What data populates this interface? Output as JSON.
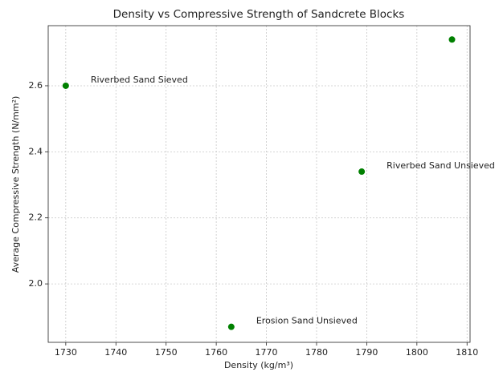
{
  "chart_data": {
    "type": "scatter",
    "title": "Density vs Compressive Strength of Sandcrete Blocks",
    "xlabel": "Density (kg/m³)",
    "ylabel": "Average Compressive Strength (N/mm²)",
    "x": [
      1730,
      1763,
      1789,
      1807
    ],
    "values": [
      2.6,
      1.87,
      2.34,
      2.74
    ],
    "point_labels": [
      "Riverbed Sand Sieved",
      "Erosion Sand Unsieved",
      "Riverbed Sand Unsieved",
      null
    ],
    "color": "#008000",
    "xlim": [
      1726.5,
      1810.6
    ],
    "xticks": [
      1730,
      1740,
      1750,
      1760,
      1770,
      1780,
      1790,
      1800,
      1810
    ],
    "ylim": [
      1.823,
      2.782
    ],
    "yticks": [
      {
        "value": 2.0,
        "label": "2.0"
      },
      2.2,
      2.4,
      2.6
    ],
    "grid": true
  }
}
